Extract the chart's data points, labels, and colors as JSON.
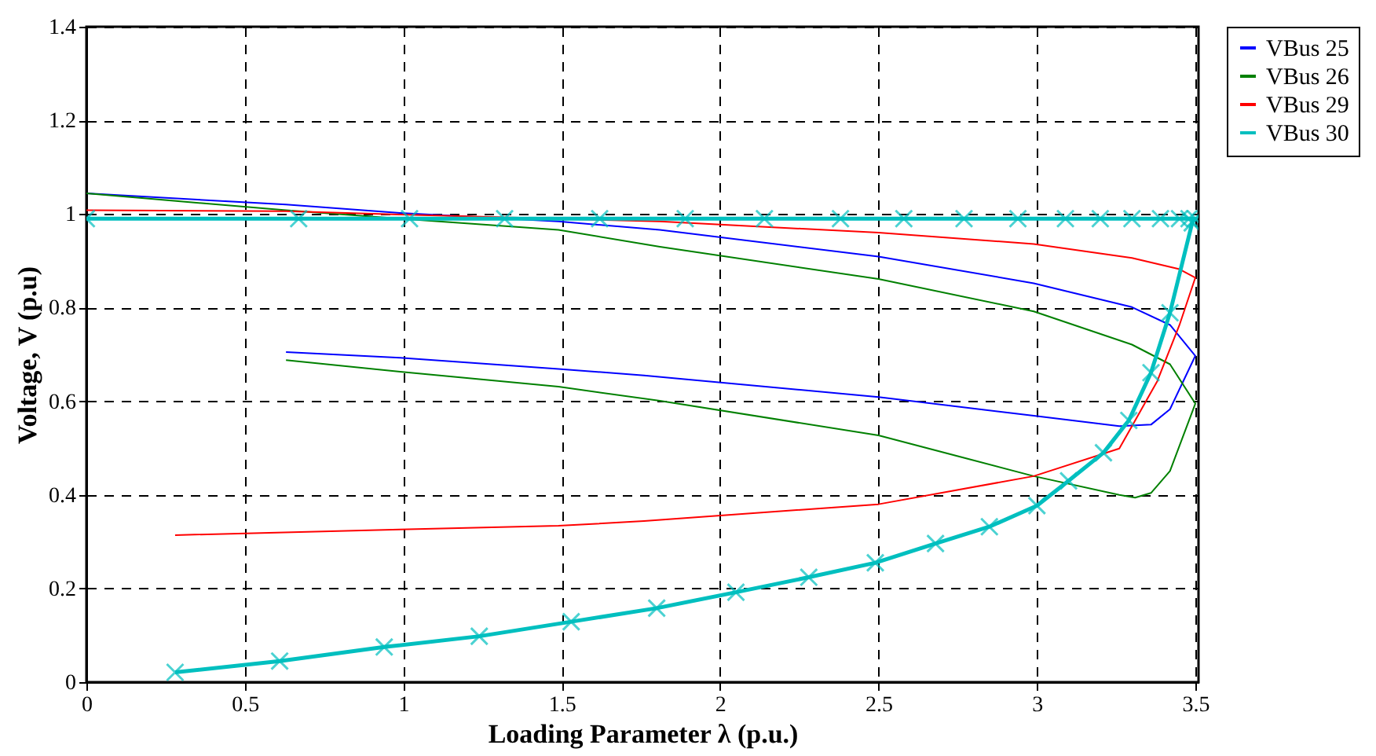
{
  "chart_data": {
    "type": "line",
    "xlabel": "Loading Parameter λ (p.u.)",
    "ylabel": "Voltage, V (p.u)",
    "xlim": [
      0,
      3.51
    ],
    "xticks": [
      0,
      0.5,
      1,
      1.5,
      2,
      2.5,
      3,
      3.5
    ],
    "ylim": [
      0,
      1.4
    ],
    "yticks": [
      0,
      0.2,
      0.4,
      0.6,
      0.8,
      1,
      1.2,
      1.4
    ],
    "grid": true,
    "legend": "right",
    "line_style": "solid",
    "series": [
      {
        "name": "VBus 25",
        "color": "#0000ff",
        "marker": "none",
        "x": [
          0,
          0.63,
          0.99,
          1.49,
          1.81,
          2.5,
          2.99,
          3.3,
          3.42,
          3.5,
          3.42,
          3.36,
          3.26,
          2.99,
          2.5,
          1.76,
          1.49,
          0.99,
          0.63
        ],
        "values": [
          1.044,
          1.02,
          1.002,
          0.984,
          0.966,
          0.909,
          0.852,
          0.801,
          0.763,
          0.697,
          0.583,
          0.55,
          0.547,
          0.569,
          0.609,
          0.655,
          0.669,
          0.693,
          0.705
        ]
      },
      {
        "name": "VBus 26",
        "color": "#008000",
        "marker": "none",
        "x": [
          0,
          0.63,
          0.99,
          1.49,
          1.81,
          2.5,
          2.99,
          3.3,
          3.42,
          3.5,
          3.42,
          3.36,
          3.31,
          3.26,
          2.99,
          2.76,
          2.5,
          1.81,
          1.49,
          0.99,
          0.63
        ],
        "values": [
          1.044,
          1.008,
          0.99,
          0.966,
          0.93,
          0.861,
          0.792,
          0.721,
          0.679,
          0.595,
          0.451,
          0.404,
          0.394,
          0.4,
          0.44,
          0.481,
          0.527,
          0.601,
          0.631,
          0.663,
          0.688
        ]
      },
      {
        "name": "VBus 29",
        "color": "#ff0000",
        "marker": "none",
        "x": [
          0,
          0.63,
          0.99,
          1.81,
          2.5,
          2.99,
          3.3,
          3.45,
          3.5,
          3.45,
          3.38,
          3.3,
          3.26,
          2.99,
          2.5,
          1.76,
          1.49,
          0.99,
          0.28
        ],
        "values": [
          1.008,
          1.006,
          0.999,
          0.984,
          0.96,
          0.936,
          0.906,
          0.882,
          0.864,
          0.763,
          0.643,
          0.547,
          0.499,
          0.44,
          0.38,
          0.344,
          0.334,
          0.326,
          0.314
        ]
      },
      {
        "name": "VBus 30",
        "color": "#00bfbf",
        "marker": "cross",
        "x": [
          0.28,
          0.61,
          0.94,
          1.24,
          1.53,
          1.8,
          2.05,
          2.28,
          2.49,
          2.68,
          2.85,
          3.0,
          3.1,
          3.21,
          3.29,
          3.36,
          3.42,
          3.49,
          3.5,
          3.48,
          3.45,
          3.39,
          3.3,
          3.2,
          3.09,
          2.94,
          2.77,
          2.58,
          2.38,
          2.14,
          1.89,
          1.62,
          1.32,
          1.02,
          0.67,
          0
        ],
        "values": [
          0.021,
          0.045,
          0.075,
          0.098,
          0.129,
          0.158,
          0.192,
          0.224,
          0.255,
          0.296,
          0.332,
          0.377,
          0.43,
          0.49,
          0.559,
          0.661,
          0.789,
          0.981,
          0.99,
          0.99,
          0.99,
          0.99,
          0.99,
          0.99,
          0.99,
          0.99,
          0.99,
          0.99,
          0.99,
          0.99,
          0.99,
          0.99,
          0.99,
          0.99,
          0.99,
          0.99
        ]
      }
    ]
  }
}
